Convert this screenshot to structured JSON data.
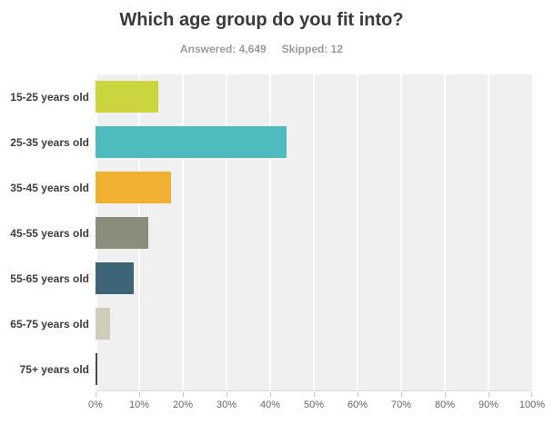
{
  "header": {
    "title": "Which age group do you fit into?",
    "answered": "Answered: 4,649",
    "skipped": "Skipped: 12"
  },
  "chart_data": {
    "type": "bar",
    "orientation": "horizontal",
    "title": "Which age group do you fit into?",
    "subtitle": "Answered: 4,649  Skipped: 12",
    "categories": [
      "15-25 years old",
      "25-35 years old",
      "35-45 years old",
      "45-55 years old",
      "55-65 years old",
      "65-75 years old",
      "75+ years old"
    ],
    "values": [
      14.4,
      43.8,
      17.3,
      12.1,
      8.8,
      3.3,
      0.4
    ],
    "bar_colors": [
      "#cbd53e",
      "#4ebcbe",
      "#f0b032",
      "#8a8d7c",
      "#3d6477",
      "#cfccba",
      "#4a4a42"
    ],
    "x_ticks": [
      "0%",
      "10%",
      "20%",
      "30%",
      "40%",
      "50%",
      "60%",
      "70%",
      "80%",
      "90%",
      "100%"
    ],
    "xlim": [
      0,
      100
    ],
    "xlabel": "",
    "ylabel": "",
    "grid": true,
    "legend": false,
    "plot_background": "#f0f0f0",
    "gridline_color": "#ffffff"
  }
}
